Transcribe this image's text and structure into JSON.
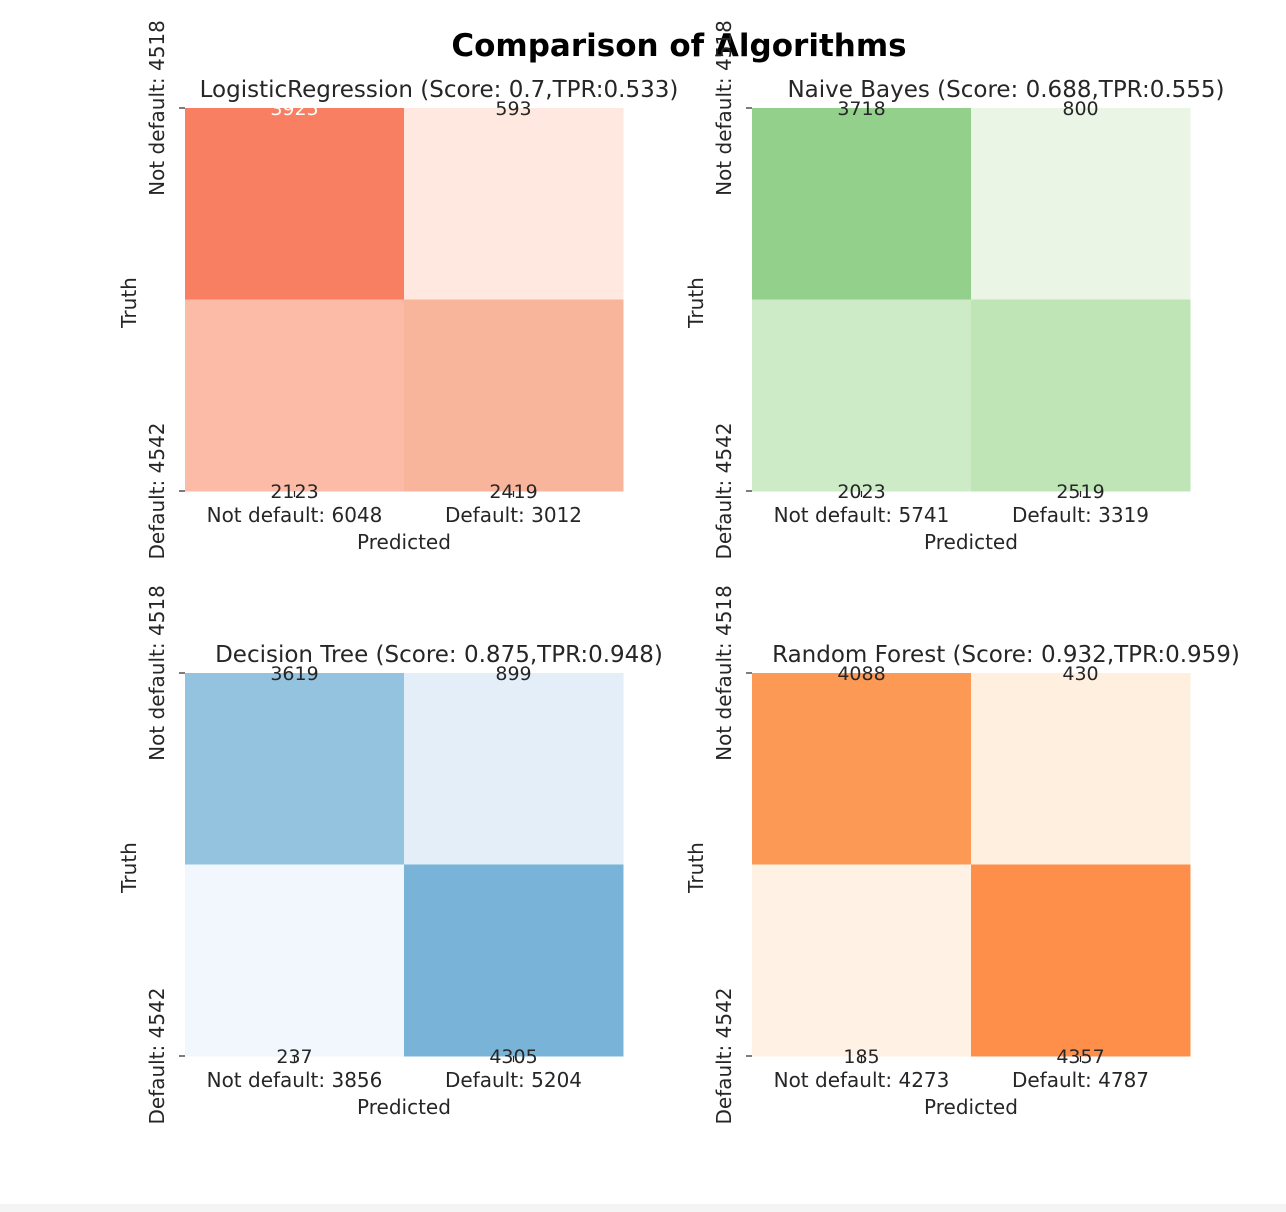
{
  "figure": {
    "title": "Comparison of Algorithms"
  },
  "chart_data": [
    {
      "type": "heatmap",
      "title": "LogisticRegression (Score: 0.7,TPR:0.533)",
      "colormap": "Reds",
      "xlabel": "Predicted",
      "ylabel": "Truth",
      "x_tick_labels": [
        "Not default: 6048",
        "Default: 3012"
      ],
      "y_tick_labels": [
        "Not default: 4518",
        "Default: 4542"
      ],
      "matrix": [
        [
          3925,
          593
        ],
        [
          2123,
          2419
        ]
      ],
      "cell_labels": [
        [
          "3925",
          "593"
        ],
        [
          "2123",
          "2419"
        ]
      ],
      "cell_colors": [
        [
          "#f87f62",
          "#fee8df"
        ],
        [
          "#fcbba6",
          "#f9b59b"
        ]
      ],
      "label_colors": [
        [
          "#ffffff",
          "#262626"
        ],
        [
          "#262626",
          "#262626"
        ]
      ]
    },
    {
      "type": "heatmap",
      "title": "Naive Bayes (Score: 0.688,TPR:0.555)",
      "colormap": "Greens",
      "xlabel": "Predicted",
      "ylabel": "Truth",
      "x_tick_labels": [
        "Not default: 5741",
        "Default: 3319"
      ],
      "y_tick_labels": [
        "Not default: 4518",
        "Default: 4542"
      ],
      "matrix": [
        [
          3718,
          800
        ],
        [
          2023,
          2519
        ]
      ],
      "cell_labels": [
        [
          "3718",
          "800"
        ],
        [
          "2023",
          "2519"
        ]
      ],
      "cell_colors": [
        [
          "#92d08c",
          "#eaf5e6"
        ],
        [
          "#cdebc6",
          "#bfe5b7"
        ]
      ],
      "label_colors": [
        [
          "#262626",
          "#262626"
        ],
        [
          "#262626",
          "#262626"
        ]
      ]
    },
    {
      "type": "heatmap",
      "title": "Decision Tree (Score: 0.875,TPR:0.948)",
      "colormap": "Blues",
      "xlabel": "Predicted",
      "ylabel": "Truth",
      "x_tick_labels": [
        "Not default: 3856",
        "Default: 5204"
      ],
      "y_tick_labels": [
        "Not default: 4518",
        "Default: 4542"
      ],
      "matrix": [
        [
          3619,
          899
        ],
        [
          237,
          4305
        ]
      ],
      "cell_labels": [
        [
          "3619",
          "899"
        ],
        [
          "237",
          "4305"
        ]
      ],
      "cell_colors": [
        [
          "#93c3de",
          "#e3eef8"
        ],
        [
          "#f2f7fd",
          "#79b4d8"
        ]
      ],
      "label_colors": [
        [
          "#262626",
          "#262626"
        ],
        [
          "#262626",
          "#262626"
        ]
      ]
    },
    {
      "type": "heatmap",
      "title": "Random Forest (Score: 0.932,TPR:0.959)",
      "colormap": "Oranges",
      "xlabel": "Predicted",
      "ylabel": "Truth",
      "x_tick_labels": [
        "Not default: 4273",
        "Default: 4787"
      ],
      "y_tick_labels": [
        "Not default: 4518",
        "Default: 4542"
      ],
      "matrix": [
        [
          4088,
          430
        ],
        [
          185,
          4357
        ]
      ],
      "cell_labels": [
        [
          "4088",
          "430"
        ],
        [
          "185",
          "4357"
        ]
      ],
      "cell_colors": [
        [
          "#fb9955",
          "#feefdf"
        ],
        [
          "#fff1e3",
          "#fd8f4b"
        ]
      ],
      "label_colors": [
        [
          "#262626",
          "#262626"
        ],
        [
          "#262626",
          "#262626"
        ]
      ]
    }
  ]
}
